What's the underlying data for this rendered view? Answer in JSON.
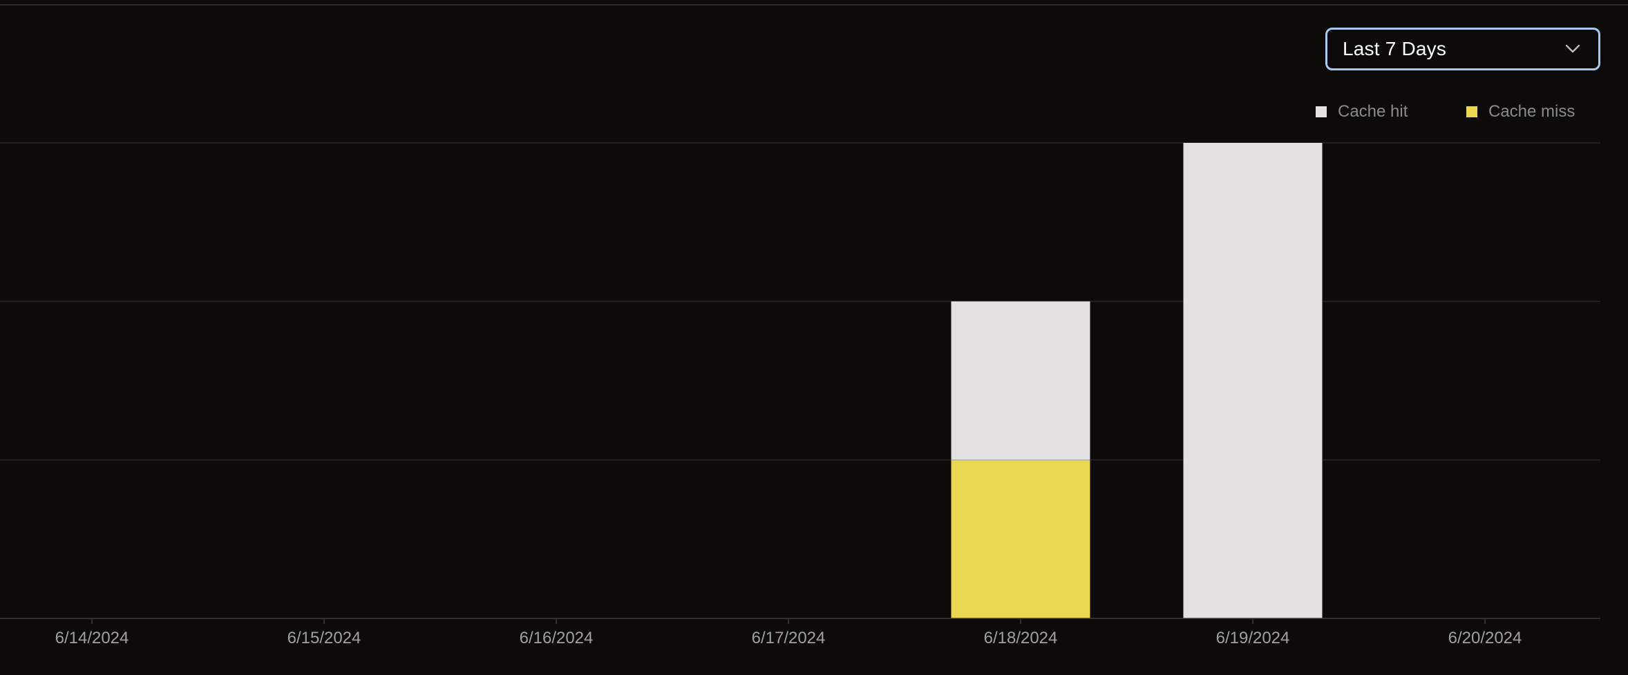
{
  "range_select": {
    "value": "Last 7 Days",
    "icon": "chevron-down-icon"
  },
  "legend": {
    "items": [
      {
        "label": "Cache hit",
        "color": "#e3e1e1"
      },
      {
        "label": "Cache miss",
        "color": "#ebd852"
      }
    ]
  },
  "colors": {
    "background": "#0c0b0a",
    "grid": "#262524",
    "axis": "#3a3a3a",
    "tick_text": "#a0a0a0",
    "select_border": "#a9c9f0"
  },
  "chart_data": {
    "type": "bar",
    "stacked": true,
    "categories": [
      "6/14/2024",
      "6/15/2024",
      "6/16/2024",
      "6/17/2024",
      "6/18/2024",
      "6/19/2024",
      "6/20/2024"
    ],
    "series": [
      {
        "name": "Cache miss",
        "color": "#ebd852",
        "values": [
          0,
          0,
          0,
          0,
          1,
          0,
          0
        ]
      },
      {
        "name": "Cache hit",
        "color": "#e3e1e1",
        "values": [
          0,
          0,
          0,
          0,
          1,
          3,
          0
        ]
      }
    ],
    "ylim": [
      0,
      3
    ],
    "grid": true,
    "legend_position": "top-right"
  }
}
